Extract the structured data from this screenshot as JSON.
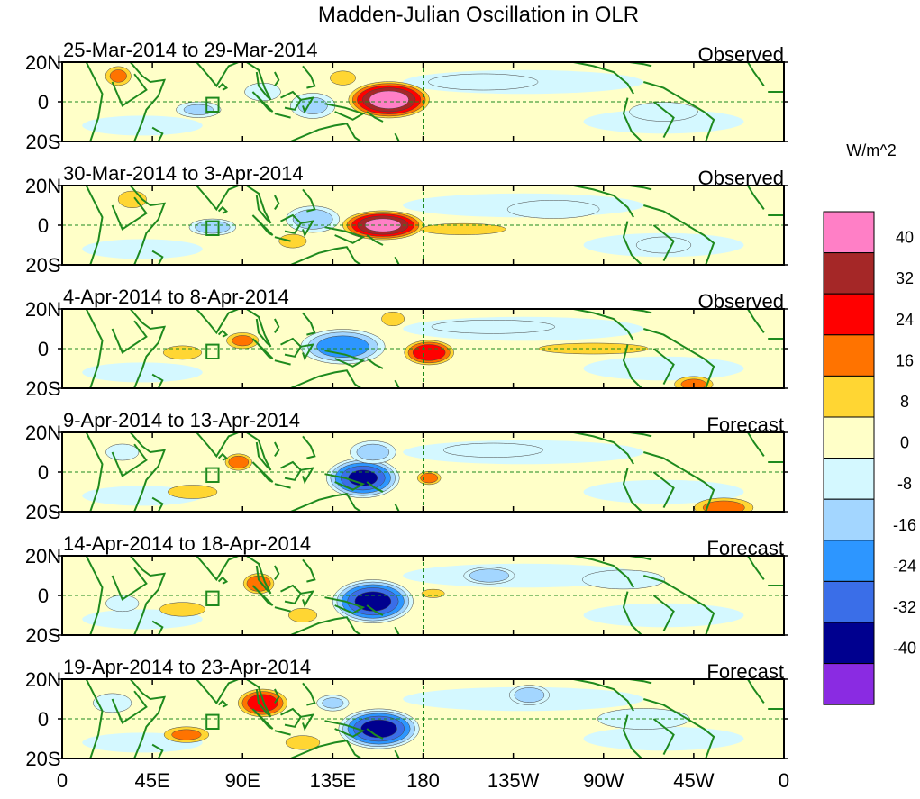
{
  "chart_data": {
    "type": "heatmap",
    "title": "Madden-Julian Oscillation in OLR",
    "units_label": "W/m^2",
    "x_ticks": [
      "0",
      "45E",
      "90E",
      "135E",
      "180",
      "135W",
      "90W",
      "45W",
      "0"
    ],
    "y_ticks": [
      "20N",
      "0",
      "20S"
    ],
    "x_range_deg_east": [
      0,
      360
    ],
    "y_range_deg": [
      -20,
      20
    ],
    "colorbar": {
      "levels": [
        "40",
        "32",
        "24",
        "16",
        "8",
        "0",
        "-8",
        "-16",
        "-24",
        "-32",
        "-40"
      ],
      "colors": [
        "#ff7fc6",
        "#a52727",
        "#ff0000",
        "#ff7300",
        "#ffd633",
        "#ffffc8",
        "#d4f8ff",
        "#a3d6ff",
        "#2d96ff",
        "#3a6ee8",
        "#00008f",
        "#8a2be2"
      ]
    },
    "panels": [
      {
        "period": "25-Mar-2014 to 29-Mar-2014",
        "kind": "Observed",
        "anomalies": [
          {
            "lon": 163,
            "lat": 1,
            "rx": 22,
            "ry": 10,
            "v": 44
          },
          {
            "lon": 125,
            "lat": -2,
            "rx": 14,
            "ry": 8,
            "v": -16
          },
          {
            "lon": 100,
            "lat": 5,
            "rx": 12,
            "ry": 6,
            "v": -12
          },
          {
            "lon": 68,
            "lat": -4,
            "rx": 14,
            "ry": 5,
            "v": -16
          },
          {
            "lon": 28,
            "lat": 13,
            "rx": 8,
            "ry": 6,
            "v": 16
          },
          {
            "lon": 140,
            "lat": 12,
            "rx": 9,
            "ry": 5,
            "v": 10
          },
          {
            "lon": 210,
            "lat": 10,
            "rx": 40,
            "ry": 6,
            "v": -9
          },
          {
            "lon": 300,
            "lat": -5,
            "rx": 25,
            "ry": 7,
            "v": -9
          }
        ]
      },
      {
        "period": "30-Mar-2014 to 3-Apr-2014",
        "kind": "Observed",
        "anomalies": [
          {
            "lon": 160,
            "lat": 0,
            "rx": 22,
            "ry": 8,
            "v": 42
          },
          {
            "lon": 125,
            "lat": 3,
            "rx": 16,
            "ry": 8,
            "v": -20
          },
          {
            "lon": 75,
            "lat": -1,
            "rx": 14,
            "ry": 5,
            "v": -20
          },
          {
            "lon": 200,
            "lat": -2,
            "rx": 30,
            "ry": 4,
            "v": 10
          },
          {
            "lon": 35,
            "lat": 13,
            "rx": 10,
            "ry": 6,
            "v": 10
          },
          {
            "lon": 115,
            "lat": -8,
            "rx": 10,
            "ry": 5,
            "v": 9
          },
          {
            "lon": 245,
            "lat": 8,
            "rx": 35,
            "ry": 7,
            "v": -8
          },
          {
            "lon": 300,
            "lat": -10,
            "rx": 20,
            "ry": 6,
            "v": -9
          }
        ]
      },
      {
        "period": "4-Apr-2014 to 8-Apr-2014",
        "kind": "Observed",
        "anomalies": [
          {
            "lon": 183,
            "lat": -2,
            "rx": 14,
            "ry": 7,
            "v": 30
          },
          {
            "lon": 140,
            "lat": 1,
            "rx": 24,
            "ry": 10,
            "v": -28
          },
          {
            "lon": 90,
            "lat": 4,
            "rx": 10,
            "ry": 5,
            "v": 16
          },
          {
            "lon": 60,
            "lat": -2,
            "rx": 14,
            "ry": 5,
            "v": 9
          },
          {
            "lon": 215,
            "lat": 11,
            "rx": 45,
            "ry": 5,
            "v": -9
          },
          {
            "lon": 265,
            "lat": 0,
            "rx": 40,
            "ry": 4,
            "v": 9
          },
          {
            "lon": 315,
            "lat": -18,
            "rx": 12,
            "ry": 5,
            "v": 16
          },
          {
            "lon": 165,
            "lat": 15,
            "rx": 8,
            "ry": 5,
            "v": 10
          }
        ]
      },
      {
        "period": "9-Apr-2014 to 13-Apr-2014",
        "kind": "Forecast",
        "anomalies": [
          {
            "lon": 150,
            "lat": -3,
            "rx": 20,
            "ry": 11,
            "v": -40
          },
          {
            "lon": 183,
            "lat": -3,
            "rx": 7,
            "ry": 4,
            "v": 20
          },
          {
            "lon": 88,
            "lat": 5,
            "rx": 8,
            "ry": 5,
            "v": 20
          },
          {
            "lon": 65,
            "lat": -10,
            "rx": 18,
            "ry": 5,
            "v": 9
          },
          {
            "lon": 155,
            "lat": 10,
            "rx": 14,
            "ry": 7,
            "v": -18
          },
          {
            "lon": 215,
            "lat": 11,
            "rx": 35,
            "ry": 5,
            "v": -10
          },
          {
            "lon": 330,
            "lat": -18,
            "rx": 18,
            "ry": 6,
            "v": 18
          },
          {
            "lon": 30,
            "lat": 10,
            "rx": 12,
            "ry": 6,
            "v": -9
          }
        ]
      },
      {
        "period": "14-Apr-2014 to 18-Apr-2014",
        "kind": "Forecast",
        "anomalies": [
          {
            "lon": 155,
            "lat": -3,
            "rx": 22,
            "ry": 12,
            "v": -42
          },
          {
            "lon": 98,
            "lat": 6,
            "rx": 9,
            "ry": 6,
            "v": 22
          },
          {
            "lon": 213,
            "lat": 10,
            "rx": 15,
            "ry": 5,
            "v": -22
          },
          {
            "lon": 185,
            "lat": 1,
            "rx": 8,
            "ry": 3,
            "v": 10
          },
          {
            "lon": 60,
            "lat": -7,
            "rx": 16,
            "ry": 5,
            "v": 10
          },
          {
            "lon": 120,
            "lat": -10,
            "rx": 10,
            "ry": 5,
            "v": 10
          },
          {
            "lon": 280,
            "lat": 8,
            "rx": 30,
            "ry": 7,
            "v": -9
          },
          {
            "lon": 30,
            "lat": -4,
            "rx": 12,
            "ry": 6,
            "v": -9
          }
        ]
      },
      {
        "period": "19-Apr-2014 to 23-Apr-2014",
        "kind": "Forecast",
        "anomalies": [
          {
            "lon": 158,
            "lat": -5,
            "rx": 22,
            "ry": 11,
            "v": -42
          },
          {
            "lon": 100,
            "lat": 8,
            "rx": 14,
            "ry": 8,
            "v": 28
          },
          {
            "lon": 62,
            "lat": -8,
            "rx": 14,
            "ry": 5,
            "v": 16
          },
          {
            "lon": 233,
            "lat": 12,
            "rx": 12,
            "ry": 6,
            "v": -20
          },
          {
            "lon": 135,
            "lat": 8,
            "rx": 10,
            "ry": 5,
            "v": -16
          },
          {
            "lon": 120,
            "lat": -12,
            "rx": 12,
            "ry": 5,
            "v": 10
          },
          {
            "lon": 25,
            "lat": 8,
            "rx": 14,
            "ry": 7,
            "v": -9
          },
          {
            "lon": 290,
            "lat": 0,
            "rx": 35,
            "ry": 8,
            "v": -8
          }
        ]
      }
    ]
  }
}
